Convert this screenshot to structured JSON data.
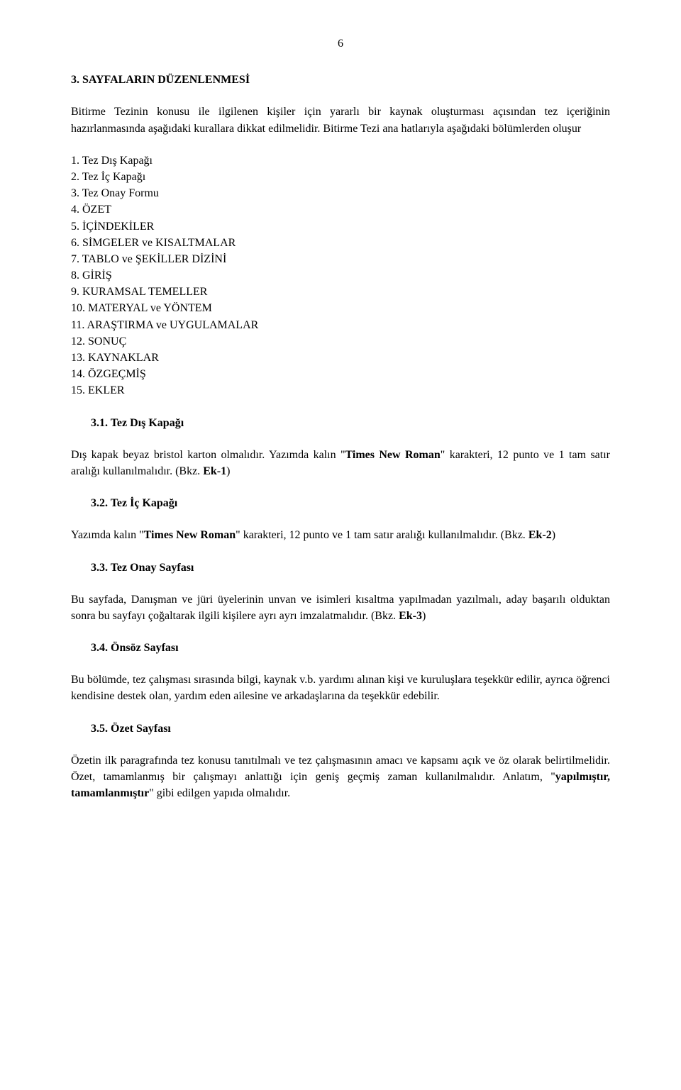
{
  "pageNumber": "6",
  "mainHeading": "3. SAYFALARIN DÜZENLENMESİ",
  "para1": "Bitirme Tezinin konusu ile ilgilenen kişiler için yararlı bir kaynak oluşturması açısından tez içeriğinin hazırlanmasında aşağıdaki kurallara dikkat edilmelidir. Bitirme Tezi ana hatlarıyla aşağıdaki bölümlerden oluşur",
  "listItems": [
    "1. Tez Dış Kapağı",
    "2. Tez İç Kapağı",
    "3. Tez Onay Formu",
    "4. ÖZET",
    "5. İÇİNDEKİLER",
    "6. SİMGELER ve KISALTMALAR",
    "7. TABLO ve ŞEKİLLER DİZİNİ",
    "8. GİRİŞ",
    "9. KURAMSAL TEMELLER",
    "10. MATERYAL ve YÖNTEM",
    "11. ARAŞTIRMA ve UYGULAMALAR",
    "12. SONUÇ",
    "13. KAYNAKLAR",
    "14. ÖZGEÇMİŞ",
    "15. EKLER"
  ],
  "sub31": "3.1. Tez Dış Kapağı",
  "p31_a": "Dış kapak beyaz bristol karton olmalıdır. Yazımda kalın \"",
  "p31_bold": "Times New Roman",
  "p31_b": "\" karakteri, 12 punto ve 1 tam satır aralığı kullanılmalıdır. (Bkz. ",
  "p31_ek": "Ek-1",
  "p31_c": ")",
  "sub32": "3.2. Tez İç Kapağı",
  "p32_a": "Yazımda kalın \"",
  "p32_bold": "Times New Roman",
  "p32_b": "\" karakteri, 12 punto ve 1 tam satır aralığı kullanılmalıdır. (Bkz. ",
  "p32_ek": "Ek-2",
  "p32_c": ")",
  "sub33": "3.3. Tez Onay Sayfası",
  "p33_a": "Bu sayfada, Danışman ve jüri üyelerinin unvan ve isimleri kısaltma yapılmadan yazılmalı, aday başarılı olduktan sonra bu sayfayı çoğaltarak ilgili kişilere ayrı ayrı imzalatmalıdır. (Bkz. ",
  "p33_ek": "Ek-3",
  "p33_b": ")",
  "sub34": "3.4. Önsöz Sayfası",
  "p34": "Bu bölümde, tez çalışması sırasında bilgi, kaynak v.b. yardımı alınan kişi ve kuruluşlara teşekkür edilir, ayrıca öğrenci kendisine destek olan, yardım eden ailesine ve arkadaşlarına da teşekkür edebilir.",
  "sub35": "3.5. Özet Sayfası",
  "p35_a": "Özetin ilk paragrafında tez konusu tanıtılmalı ve tez çalışmasının amacı ve kapsamı açık ve öz olarak belirtilmelidir. Özet, tamamlanmış bir çalışmayı anlattığı için geniş geçmiş zaman kullanılmalıdır. Anlatım, \"",
  "p35_bold": "yapılmıştır, tamamlanmıştır",
  "p35_b": "\" gibi edilgen yapıda olmalıdır."
}
